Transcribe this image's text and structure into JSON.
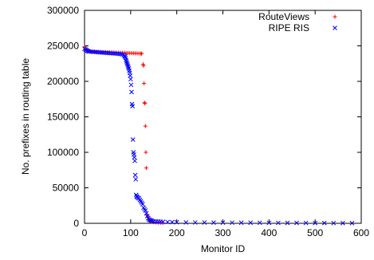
{
  "chart_data": {
    "type": "scatter",
    "title": "",
    "xlabel": "Monitor ID",
    "ylabel": "No. prefixes in routing table",
    "xlim": [
      0,
      600
    ],
    "ylim": [
      0,
      300000
    ],
    "xticks": [
      "0",
      "100",
      "200",
      "300",
      "400",
      "500",
      "600"
    ],
    "yticks": [
      "0",
      "50000",
      "100000",
      "150000",
      "200000",
      "250000",
      "300000"
    ],
    "grid": false,
    "legend_position": "top-right",
    "series": [
      {
        "name": "RouteViews",
        "marker": "plus",
        "color": "#ff0000",
        "points": [
          [
            0,
            248500
          ],
          [
            2,
            246000
          ],
          [
            4,
            244000
          ],
          [
            6,
            243200
          ],
          [
            8,
            242800
          ],
          [
            10,
            242500
          ],
          [
            14,
            242200
          ],
          [
            18,
            242000
          ],
          [
            22,
            241800
          ],
          [
            26,
            241700
          ],
          [
            30,
            241600
          ],
          [
            34,
            241400
          ],
          [
            38,
            241300
          ],
          [
            42,
            241200
          ],
          [
            46,
            241100
          ],
          [
            50,
            241000
          ],
          [
            54,
            240900
          ],
          [
            58,
            240800
          ],
          [
            62,
            240700
          ],
          [
            66,
            240600
          ],
          [
            70,
            240500
          ],
          [
            74,
            240400
          ],
          [
            78,
            240300
          ],
          [
            82,
            240200
          ],
          [
            86,
            240100
          ],
          [
            90,
            240000
          ],
          [
            94,
            239900
          ],
          [
            98,
            239800
          ],
          [
            102,
            239700
          ],
          [
            106,
            239600
          ],
          [
            110,
            239500
          ],
          [
            114,
            239400
          ],
          [
            118,
            239300
          ],
          [
            122,
            239200
          ],
          [
            124,
            239000
          ],
          [
            127,
            224000
          ],
          [
            128,
            222000
          ],
          [
            129,
            197000
          ],
          [
            130,
            170000
          ],
          [
            131,
            169000
          ],
          [
            132,
            137000
          ],
          [
            133,
            100000
          ],
          [
            134,
            78000
          ],
          [
            136,
            12000
          ],
          [
            138,
            10000
          ],
          [
            140,
            5000
          ],
          [
            142,
            3500
          ],
          [
            145,
            2500
          ],
          [
            150,
            1500
          ],
          [
            155,
            1200
          ],
          [
            160,
            1000
          ],
          [
            165,
            800
          ],
          [
            170,
            600
          ]
        ]
      },
      {
        "name": "RIPE RIS",
        "marker": "cross",
        "color": "#0000ff",
        "points": [
          [
            0,
            246000
          ],
          [
            2,
            245000
          ],
          [
            4,
            244000
          ],
          [
            6,
            243000
          ],
          [
            8,
            242500
          ],
          [
            10,
            242000
          ],
          [
            14,
            241800
          ],
          [
            18,
            241600
          ],
          [
            22,
            241400
          ],
          [
            26,
            241200
          ],
          [
            30,
            241000
          ],
          [
            34,
            240800
          ],
          [
            38,
            240600
          ],
          [
            42,
            240400
          ],
          [
            46,
            240200
          ],
          [
            50,
            240000
          ],
          [
            54,
            239800
          ],
          [
            58,
            239600
          ],
          [
            62,
            239400
          ],
          [
            66,
            239200
          ],
          [
            70,
            239000
          ],
          [
            74,
            238800
          ],
          [
            78,
            238500
          ],
          [
            82,
            238000
          ],
          [
            85,
            237000
          ],
          [
            87,
            236000
          ],
          [
            88,
            235000
          ],
          [
            89,
            233000
          ],
          [
            90,
            230000
          ],
          [
            91,
            228000
          ],
          [
            92,
            226000
          ],
          [
            93,
            224000
          ],
          [
            94,
            222000
          ],
          [
            95,
            220000
          ],
          [
            96,
            218000
          ],
          [
            97,
            215000
          ],
          [
            98,
            212000
          ],
          [
            99,
            208000
          ],
          [
            100,
            203000
          ],
          [
            101,
            195000
          ],
          [
            102,
            185000
          ],
          [
            103,
            168000
          ],
          [
            104,
            165000
          ],
          [
            105,
            118000
          ],
          [
            106,
            100000
          ],
          [
            107,
            97000
          ],
          [
            108,
            93000
          ],
          [
            109,
            88000
          ],
          [
            110,
            68000
          ],
          [
            111,
            62000
          ],
          [
            112,
            40000
          ],
          [
            113,
            38000
          ],
          [
            114,
            37000
          ],
          [
            116,
            36000
          ],
          [
            118,
            35000
          ],
          [
            120,
            33000
          ],
          [
            122,
            31000
          ],
          [
            124,
            29000
          ],
          [
            126,
            27000
          ],
          [
            128,
            22000
          ],
          [
            130,
            20000
          ],
          [
            132,
            18000
          ],
          [
            134,
            14000
          ],
          [
            136,
            10000
          ],
          [
            138,
            7000
          ],
          [
            140,
            5500
          ],
          [
            142,
            4500
          ],
          [
            144,
            4000
          ],
          [
            146,
            3500
          ],
          [
            150,
            3000
          ],
          [
            155,
            2700
          ],
          [
            160,
            2500
          ],
          [
            165,
            2300
          ],
          [
            170,
            2100
          ],
          [
            180,
            1900
          ],
          [
            190,
            1700
          ],
          [
            200,
            1500
          ],
          [
            220,
            1300
          ],
          [
            240,
            1200
          ],
          [
            260,
            1100
          ],
          [
            280,
            1000
          ],
          [
            300,
            950
          ],
          [
            320,
            900
          ],
          [
            340,
            850
          ],
          [
            360,
            800
          ],
          [
            380,
            750
          ],
          [
            400,
            700
          ],
          [
            420,
            650
          ],
          [
            440,
            600
          ],
          [
            460,
            550
          ],
          [
            480,
            500
          ],
          [
            500,
            450
          ],
          [
            520,
            400
          ],
          [
            540,
            350
          ],
          [
            560,
            300
          ],
          [
            580,
            250
          ]
        ]
      }
    ]
  }
}
